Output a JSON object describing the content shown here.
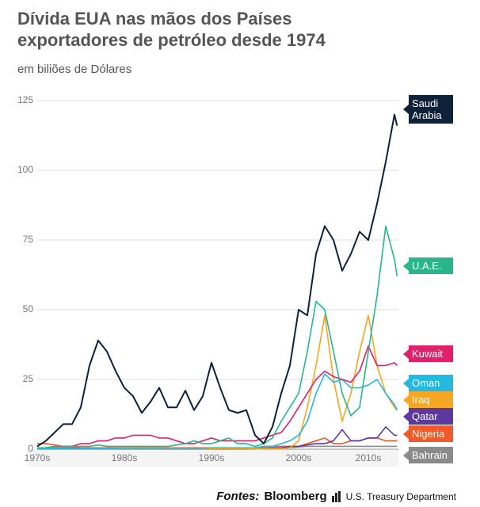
{
  "chart_data": {
    "type": "line",
    "title": "Dívida EUA nas mãos dos Países exportadores de petróleo desde 1974",
    "subtitle": "em biliões de Dólares",
    "x": [
      1975,
      1976,
      1977,
      1978,
      1979,
      1980,
      1981,
      1982,
      1983,
      1984,
      1985,
      1986,
      1987,
      1988,
      1989,
      1990,
      1991,
      1992,
      1993,
      1994,
      1995,
      1996,
      1997,
      1998,
      1999,
      2000,
      2001,
      2002,
      2003,
      2004,
      2005,
      2006,
      2007,
      2008,
      2009,
      2010,
      2011,
      2012,
      2013,
      2014,
      2015,
      2016,
      2016.3
    ],
    "xlim": [
      1975,
      2016.5
    ],
    "xticks": [
      {
        "value": 1975,
        "label": "1970s"
      },
      {
        "value": 1985,
        "label": "1980s"
      },
      {
        "value": 1995,
        "label": "1990s"
      },
      {
        "value": 2005,
        "label": "2000s"
      },
      {
        "value": 2013,
        "label": "2010s"
      }
    ],
    "ylim": [
      0,
      125
    ],
    "yticks": [
      0,
      25,
      50,
      75,
      100,
      125
    ],
    "grid": true,
    "series": [
      {
        "name": "Saudi Arabia",
        "color": "#0d2238",
        "values": [
          1,
          3,
          6,
          9,
          9,
          15,
          30,
          39,
          35,
          28,
          22,
          19,
          13,
          17,
          22,
          15,
          15,
          21,
          14,
          19,
          31,
          22,
          14,
          13,
          14,
          5,
          2,
          8,
          20,
          30,
          50,
          48,
          70,
          80,
          75,
          64,
          70,
          78,
          75,
          88,
          103,
          120,
          116
        ]
      },
      {
        "name": "U.A.E.",
        "color": "#2bb58a",
        "values": [
          0.5,
          0.5,
          1,
          1,
          1,
          1,
          1,
          1.5,
          1,
          1,
          1,
          1,
          1,
          1,
          1,
          1,
          1.5,
          2,
          3,
          2,
          2,
          3,
          4,
          2,
          2,
          1,
          2,
          4,
          10,
          15,
          20,
          35,
          53,
          50,
          35,
          20,
          12,
          15,
          35,
          55,
          80,
          68,
          62
        ]
      },
      {
        "name": "Kuwait",
        "color": "#e0206a",
        "values": [
          0.5,
          0.5,
          1,
          1,
          1,
          2,
          2,
          3,
          3,
          4,
          4,
          5,
          5,
          5,
          4,
          4,
          3,
          2,
          2,
          3,
          4,
          3,
          3,
          3,
          3,
          3,
          4,
          5,
          6,
          10,
          15,
          20,
          25,
          28,
          26,
          25,
          24,
          28,
          37,
          30,
          30,
          31,
          30
        ]
      },
      {
        "name": "Oman",
        "color": "#27b8e0",
        "values": [
          0.2,
          0.2,
          0.2,
          0.2,
          0.2,
          0.2,
          0.2,
          0.2,
          0.2,
          0.2,
          0.3,
          0.3,
          0.3,
          0.3,
          0.3,
          0.3,
          0.3,
          0.3,
          0.3,
          0.3,
          0.5,
          0.5,
          0.5,
          0.5,
          0.5,
          0.5,
          1,
          1,
          2,
          3,
          5,
          10,
          20,
          27,
          24,
          25,
          22,
          22,
          23,
          25,
          20,
          16,
          14
        ]
      },
      {
        "name": "Iraq",
        "color": "#f5a623",
        "values": [
          0.2,
          0.2,
          0.2,
          0.2,
          0.2,
          0.2,
          0.2,
          0.2,
          0.2,
          0.2,
          0.2,
          0.2,
          0.2,
          0.2,
          0.2,
          0.2,
          0.2,
          0.2,
          0.2,
          0.2,
          0.2,
          0.2,
          0.2,
          0.2,
          0.2,
          0.2,
          0.2,
          0.2,
          0.2,
          0.5,
          3,
          15,
          30,
          48,
          25,
          10,
          20,
          35,
          48,
          30,
          20,
          15,
          14
        ]
      },
      {
        "name": "Qatar",
        "color": "#5b3a9e",
        "values": [
          0.1,
          0.1,
          0.1,
          0.1,
          0.1,
          0.1,
          0.1,
          0.1,
          0.1,
          0.1,
          0.1,
          0.1,
          0.1,
          0.1,
          0.1,
          0.1,
          0.1,
          0.1,
          0.1,
          0.1,
          0.1,
          0.1,
          0.1,
          0.1,
          0.1,
          0.2,
          0.3,
          0.5,
          0.5,
          1,
          1,
          1.5,
          2,
          2,
          3,
          7,
          3,
          3,
          4,
          4,
          8,
          5,
          5
        ]
      },
      {
        "name": "Nigeria",
        "color": "#f05a28",
        "values": [
          2,
          2,
          1.5,
          1,
          1,
          0.5,
          0.5,
          0.5,
          0.5,
          0.5,
          0.5,
          0.5,
          0.5,
          0.5,
          0.5,
          0.5,
          0.5,
          0.5,
          0.5,
          0.5,
          0.5,
          0.5,
          0.5,
          0.5,
          0.5,
          0.5,
          1,
          1,
          1,
          1,
          1,
          2,
          3,
          4,
          2,
          2,
          3,
          3,
          4,
          4,
          3,
          3,
          3
        ]
      },
      {
        "name": "Bahrain",
        "color": "#8a8a8a",
        "values": [
          0.5,
          0.5,
          0.5,
          0.5,
          0.5,
          0.5,
          0.5,
          0.5,
          0.5,
          0.5,
          0.5,
          0.5,
          0.5,
          0.5,
          0.5,
          0.5,
          0.5,
          0.5,
          0.5,
          0.5,
          0.5,
          0.5,
          0.5,
          0.5,
          0.5,
          0.5,
          0.5,
          0.5,
          0.5,
          0.5,
          0.8,
          1,
          1,
          1,
          1,
          1,
          1,
          1,
          1,
          1,
          1,
          1,
          1
        ]
      }
    ],
    "source": {
      "label": "Fontes:",
      "items": [
        "Bloomberg",
        "U.S. Treasury Department"
      ]
    }
  }
}
